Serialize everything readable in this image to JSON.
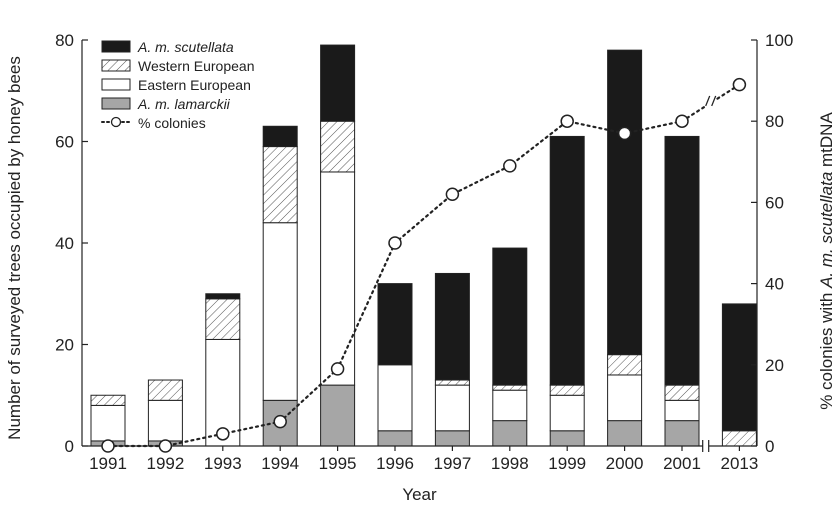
{
  "chart_data": {
    "type": "bar",
    "stacked": true,
    "categories": [
      "1991",
      "1992",
      "1993",
      "1994",
      "1995",
      "1996",
      "1997",
      "1998",
      "1999",
      "2000",
      "2001",
      "2013"
    ],
    "xlabel": "Year",
    "ylabel": "Number of surveyed trees occupied by honey bees",
    "ylabel2_parts": [
      "% colonies with ",
      "A. m. scutellata",
      " mtDNA"
    ],
    "ylim": [
      0,
      80
    ],
    "yticks": [
      0,
      20,
      40,
      60,
      80
    ],
    "y2lim": [
      0,
      100
    ],
    "y2ticks": [
      0,
      20,
      40,
      60,
      80,
      100
    ],
    "series": [
      {
        "name": "A. m. lamarckii",
        "italic": true,
        "fill": "#a6a6a6",
        "values": [
          1,
          1,
          0,
          9,
          12,
          3,
          3,
          5,
          3,
          5,
          5,
          0
        ]
      },
      {
        "name": "Eastern European",
        "italic": false,
        "fill": "#ffffff",
        "values": [
          7,
          8,
          21,
          35,
          42,
          13,
          9,
          6,
          7,
          9,
          4,
          0
        ]
      },
      {
        "name": "Western European",
        "italic": false,
        "fill": "hatch",
        "values": [
          2,
          4,
          8,
          15,
          10,
          0,
          1,
          1,
          2,
          4,
          3,
          3
        ]
      },
      {
        "name": "A. m. scutellata",
        "italic": true,
        "fill": "#1a1a1a",
        "values": [
          0,
          0,
          1,
          4,
          15,
          16,
          21,
          27,
          49,
          60,
          49,
          25
        ]
      }
    ],
    "line_series": {
      "name": "% colonies",
      "axis": "right",
      "values": [
        0,
        0,
        3,
        6,
        19,
        50,
        62,
        69,
        80,
        77,
        80,
        89
      ]
    },
    "legend_order": [
      "A. m. scutellata",
      "Western European",
      "Eastern European",
      "A. m. lamarckii",
      "% colonies"
    ],
    "legend_position": "top-left",
    "axis_break_between": [
      "2001",
      "2013"
    ],
    "grid": false
  }
}
